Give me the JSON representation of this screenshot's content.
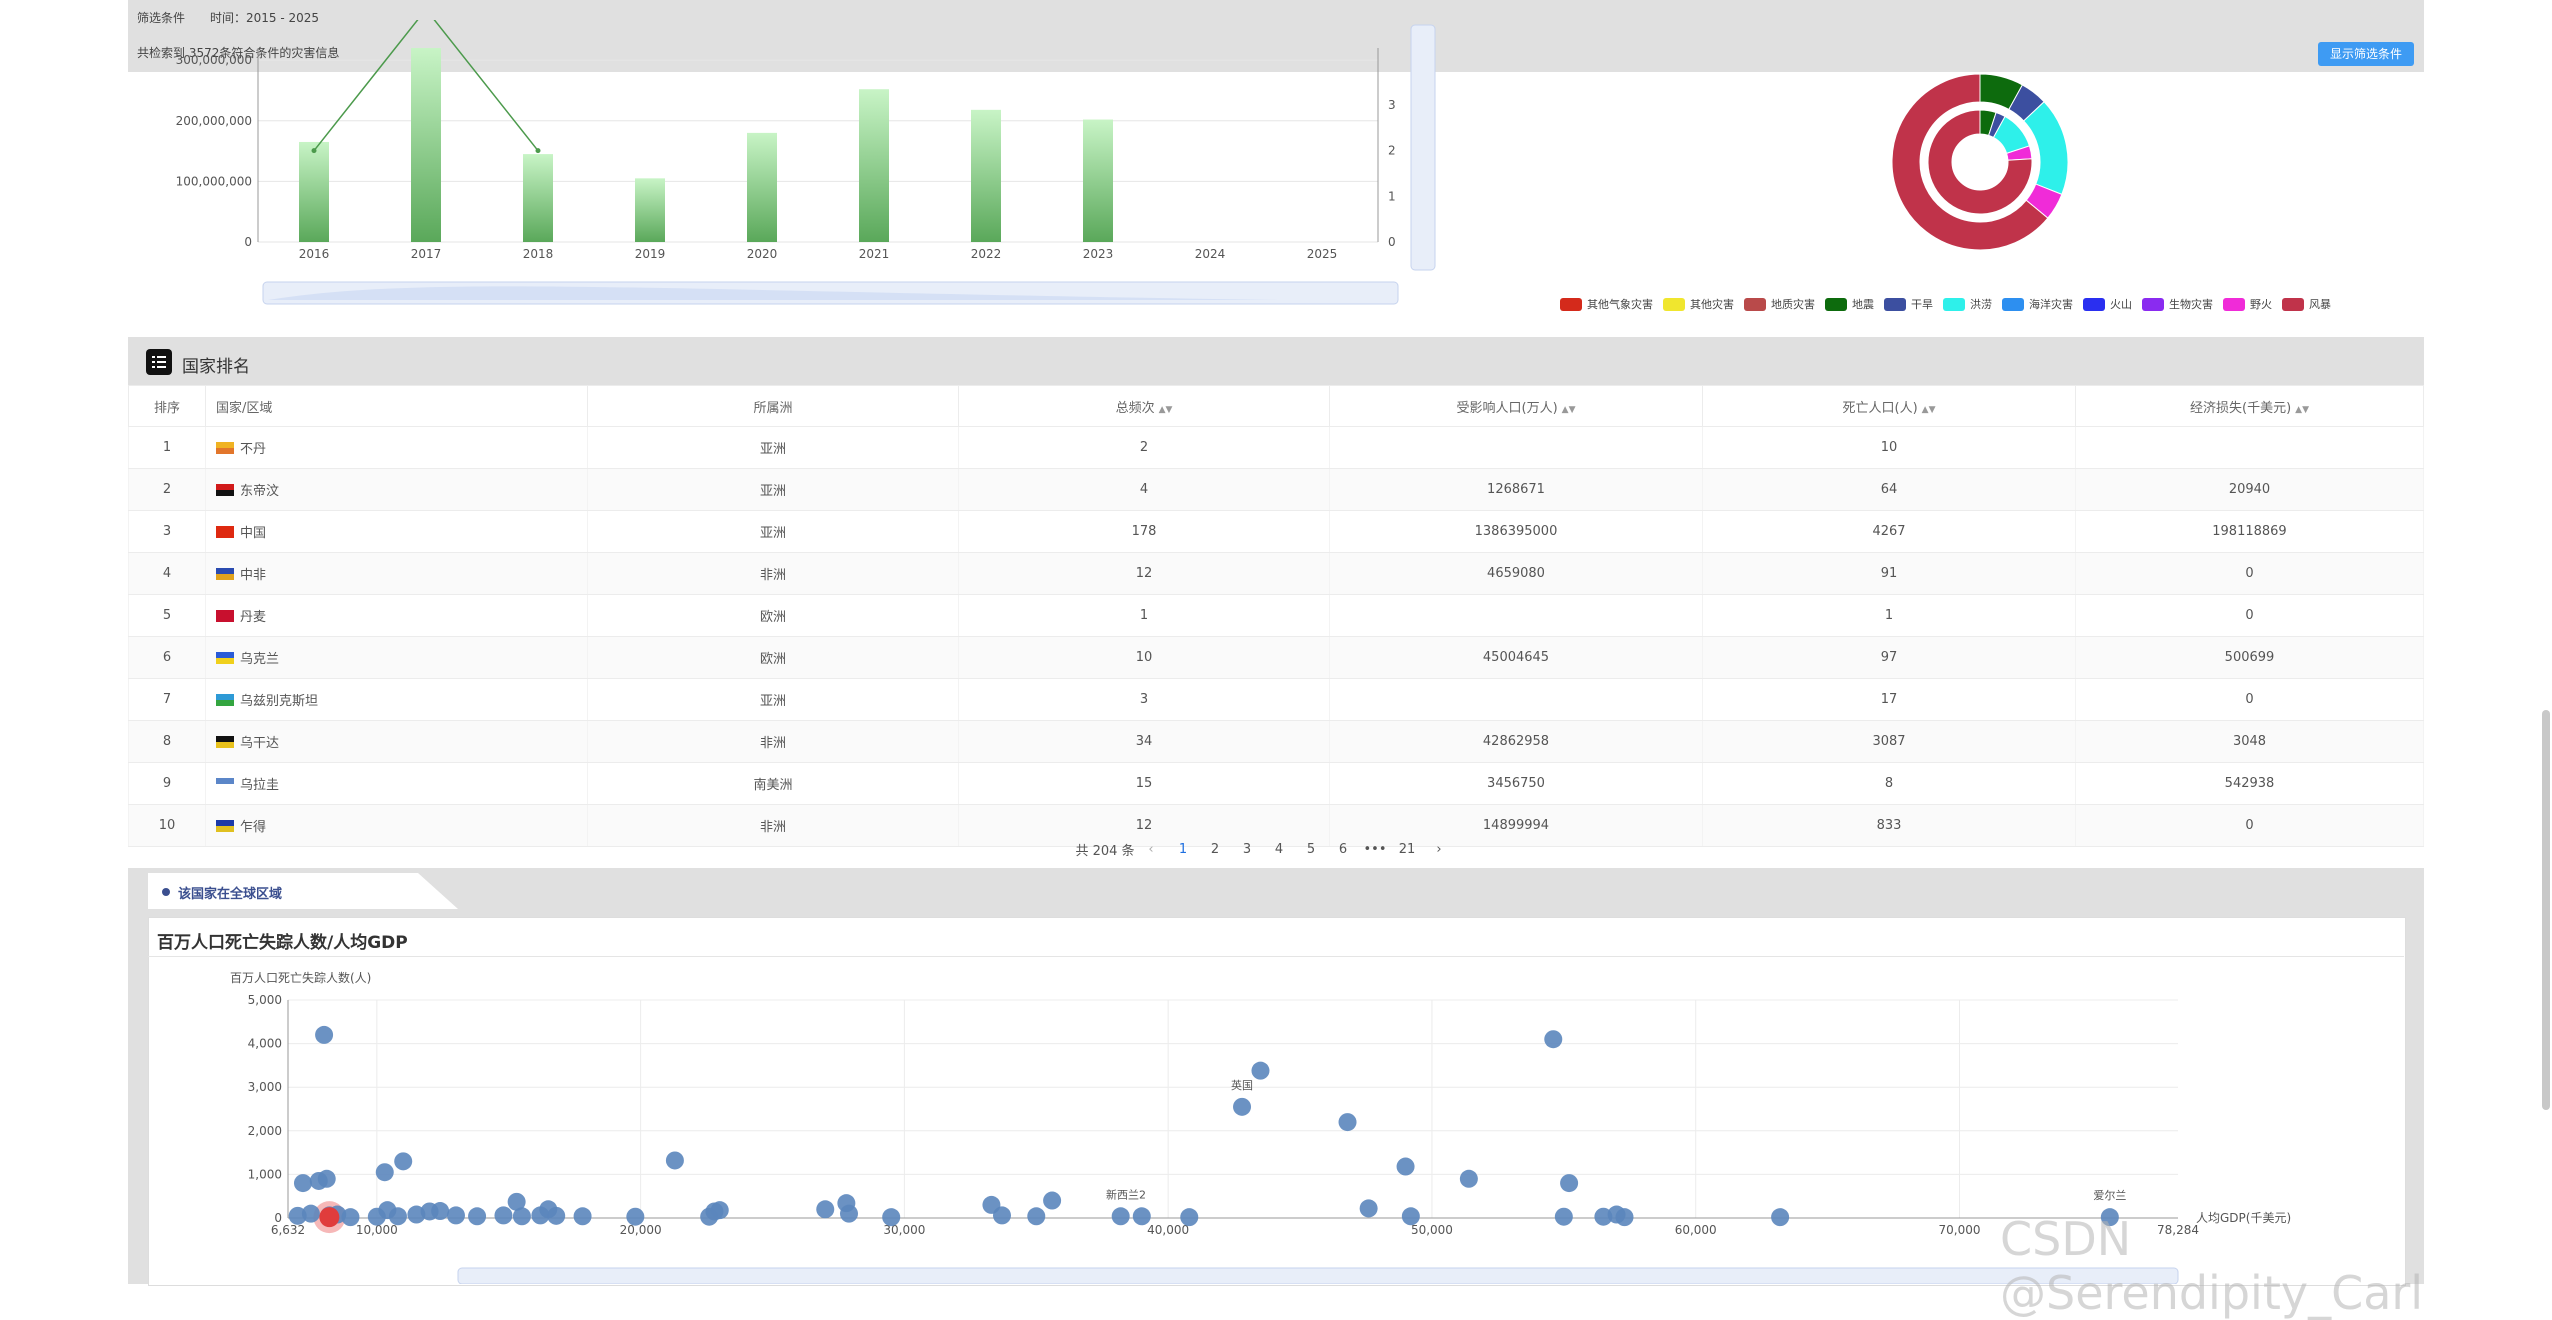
{
  "filter": {
    "label": "筛选条件",
    "time": "时间：2015 - 2025",
    "count_text": "共检索到 3572条符合条件的灾害信息",
    "show_button": "显示筛选条件"
  },
  "bar_chart": {
    "chart_data": {
      "type": "bar",
      "categories": [
        "2016",
        "2017",
        "2018",
        "2019",
        "2020",
        "2021",
        "2022",
        "2023",
        "2024",
        "2025"
      ],
      "values": [
        165000000,
        320000000,
        145000000,
        105000000,
        180000000,
        252000000,
        218000000,
        202000000,
        0,
        0
      ],
      "y_ticks": [
        "0",
        "100,000,000",
        "200,000,000",
        "300,000,000"
      ],
      "ylim": [
        0,
        320000000
      ],
      "line_values": [
        2,
        4,
        2
      ],
      "right_ticks": [
        "0",
        "1",
        "2",
        "3"
      ]
    }
  },
  "donut_legend": [
    {
      "label": "其他气象灾害",
      "color": "#d42a1b"
    },
    {
      "label": "其他灾害",
      "color": "#f0e62e"
    },
    {
      "label": "地质灾害",
      "color": "#b94a4a"
    },
    {
      "label": "地震",
      "color": "#0d6b0d"
    },
    {
      "label": "干旱",
      "color": "#3c4fa0"
    },
    {
      "label": "洪涝",
      "color": "#2ef0ea"
    },
    {
      "label": "海洋灾害",
      "color": "#2d8ff0"
    },
    {
      "label": "火山",
      "color": "#2a2ff0"
    },
    {
      "label": "生物灾害",
      "color": "#8a2bf0"
    },
    {
      "label": "野火",
      "color": "#f02bd8"
    },
    {
      "label": "风暴",
      "color": "#c0334a"
    }
  ],
  "ranking": {
    "title": "国家排名",
    "columns": [
      "排序",
      "国家/区域",
      "所属洲",
      "总频次",
      "受影响人口(万人)",
      "死亡人口(人)",
      "经济损失(千美元)"
    ],
    "rows": [
      {
        "rank": "1",
        "country": "不丹",
        "continent": "亚洲",
        "freq": "2",
        "affected": "",
        "deaths": "10",
        "loss": "",
        "flag": [
          "#f0b323",
          "#e2762b"
        ]
      },
      {
        "rank": "2",
        "country": "东帝汶",
        "continent": "亚洲",
        "freq": "4",
        "affected": "1268671",
        "deaths": "64",
        "loss": "20940",
        "flag": [
          "#d11a1a",
          "#111111"
        ]
      },
      {
        "rank": "3",
        "country": "中国",
        "continent": "亚洲",
        "freq": "178",
        "affected": "1386395000",
        "deaths": "4267",
        "loss": "198118869",
        "flag": [
          "#de2910",
          "#de2910"
        ]
      },
      {
        "rank": "4",
        "country": "中非",
        "continent": "非洲",
        "freq": "12",
        "affected": "4659080",
        "deaths": "91",
        "loss": "0",
        "flag": [
          "#2a4bb0",
          "#e0a21c"
        ]
      },
      {
        "rank": "5",
        "country": "丹麦",
        "continent": "欧洲",
        "freq": "1",
        "affected": "",
        "deaths": "1",
        "loss": "0",
        "flag": [
          "#c8102e",
          "#c8102e"
        ]
      },
      {
        "rank": "6",
        "country": "乌克兰",
        "continent": "欧洲",
        "freq": "10",
        "affected": "45004645",
        "deaths": "97",
        "loss": "500699",
        "flag": [
          "#2a5bd7",
          "#f0d01c"
        ]
      },
      {
        "rank": "7",
        "country": "乌兹别克斯坦",
        "continent": "亚洲",
        "freq": "3",
        "affected": "",
        "deaths": "17",
        "loss": "0",
        "flag": [
          "#2e9ad6",
          "#33a540"
        ]
      },
      {
        "rank": "8",
        "country": "乌干达",
        "continent": "非洲",
        "freq": "34",
        "affected": "42862958",
        "deaths": "3087",
        "loss": "3048",
        "flag": [
          "#111111",
          "#e8c11c"
        ]
      },
      {
        "rank": "9",
        "country": "乌拉圭",
        "continent": "南美洲",
        "freq": "15",
        "affected": "3456750",
        "deaths": "8",
        "loss": "542938",
        "flag": [
          "#5b86c8",
          "#ffffff"
        ]
      },
      {
        "rank": "10",
        "country": "乍得",
        "continent": "非洲",
        "freq": "12",
        "affected": "14899994",
        "deaths": "833",
        "loss": "0",
        "flag": [
          "#1c3aa8",
          "#e0c020"
        ]
      }
    ]
  },
  "pagination": {
    "total": "共 204 条",
    "pages": [
      "1",
      "2",
      "3",
      "4",
      "5",
      "6",
      "•••",
      "21"
    ],
    "prev": "‹",
    "next": "›"
  },
  "region": {
    "tab_label": "该国家在全球区域",
    "chart_title": "百万人口死亡失踪人数/人均GDP",
    "chart_data": {
      "type": "scatter",
      "ylabel": "百万人口死亡失踪人数(人)",
      "xlabel": "人均GDP(千美元)",
      "x_ticks": [
        "6,632",
        "10,000",
        "20,000",
        "30,000",
        "40,000",
        "50,000",
        "60,000",
        "70,000",
        "78,284"
      ],
      "y_ticks": [
        "0",
        "1,000",
        "2,000",
        "3,000",
        "4,000",
        "5,000"
      ],
      "xlim": [
        6632,
        78284
      ],
      "ylim": [
        0,
        5000
      ],
      "points": [
        [
          7000,
          50
        ],
        [
          7200,
          800
        ],
        [
          7500,
          100
        ],
        [
          7800,
          850
        ],
        [
          8000,
          4200
        ],
        [
          8100,
          900
        ],
        [
          8200,
          60
        ],
        [
          8500,
          80
        ],
        [
          9000,
          20
        ],
        [
          10000,
          30
        ],
        [
          10300,
          1050
        ],
        [
          10400,
          180
        ],
        [
          10800,
          40
        ],
        [
          11000,
          1300
        ],
        [
          11500,
          80
        ],
        [
          12000,
          150
        ],
        [
          12400,
          160
        ],
        [
          13000,
          60
        ],
        [
          13800,
          40
        ],
        [
          14800,
          60
        ],
        [
          15300,
          370
        ],
        [
          15500,
          40
        ],
        [
          16200,
          60
        ],
        [
          16500,
          200
        ],
        [
          16800,
          50
        ],
        [
          17800,
          40
        ],
        [
          19800,
          30
        ],
        [
          21300,
          1320
        ],
        [
          22600,
          30
        ],
        [
          22800,
          150
        ],
        [
          23000,
          180
        ],
        [
          27000,
          200
        ],
        [
          27800,
          340
        ],
        [
          27900,
          100
        ],
        [
          29500,
          20
        ],
        [
          33300,
          300
        ],
        [
          33700,
          60
        ],
        [
          35000,
          40
        ],
        [
          35600,
          400
        ],
        [
          38200,
          40
        ],
        [
          39000,
          40
        ],
        [
          40800,
          20
        ],
        [
          42800,
          2550
        ],
        [
          43500,
          3380
        ],
        [
          46800,
          2200
        ],
        [
          47600,
          220
        ],
        [
          49000,
          1180
        ],
        [
          49200,
          40
        ],
        [
          51400,
          900
        ],
        [
          54600,
          4100
        ],
        [
          55000,
          30
        ],
        [
          55200,
          800
        ],
        [
          56500,
          30
        ],
        [
          57000,
          80
        ],
        [
          57300,
          20
        ],
        [
          63200,
          20
        ],
        [
          75700,
          20
        ]
      ],
      "highlight": [
        8200,
        20
      ],
      "labels": [
        {
          "text": "英国",
          "x": 42800,
          "y": 2550
        },
        {
          "text": "新西兰2",
          "x": 38400,
          "y": 40
        },
        {
          "text": "爱尔兰",
          "x": 75700,
          "y": 20
        }
      ]
    }
  },
  "watermark": "CSDN @Serendipity_Carl"
}
